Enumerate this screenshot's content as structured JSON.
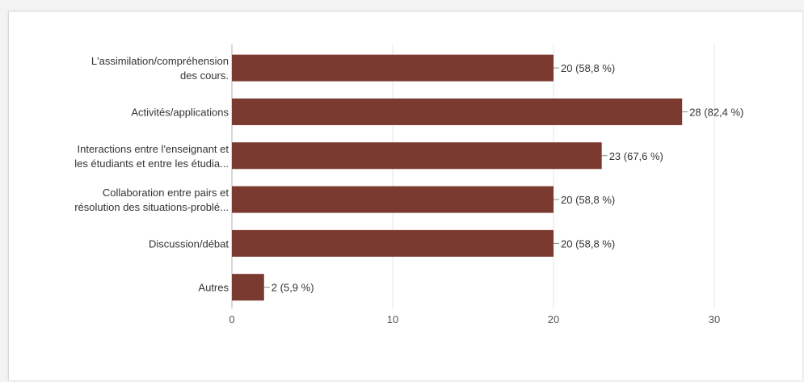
{
  "chart_data": {
    "type": "bar",
    "orientation": "horizontal",
    "title": "",
    "xlabel": "",
    "ylabel": "",
    "categories": [
      [
        "L'assimilation/compréhension",
        "des cours."
      ],
      [
        "Activités/applications"
      ],
      [
        "Interactions entre l'enseignant et",
        "les étudiants et entre les étudia..."
      ],
      [
        "Collaboration entre pairs et",
        "résolution des situations-problé..."
      ],
      [
        "Discussion/débat"
      ],
      [
        "Autres"
      ]
    ],
    "values": [
      20,
      28,
      23,
      20,
      20,
      2
    ],
    "data_labels": [
      "20 (58,8 %)",
      "28 (82,4 %)",
      "23 (67,6 %)",
      "20 (58,8 %)",
      "20 (58,8 %)",
      "2 (5,9 %)"
    ],
    "xlim": [
      0,
      30
    ],
    "xticks": [
      "0",
      "10",
      "20",
      "30"
    ],
    "grid": true,
    "bar_color": "#7b3a30"
  }
}
